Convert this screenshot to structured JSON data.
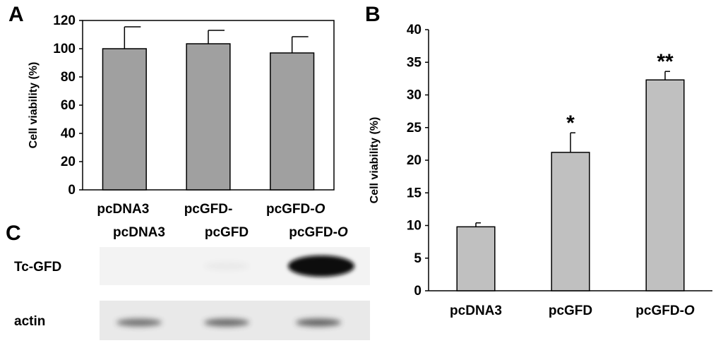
{
  "panels": {
    "A": "A",
    "B": "B",
    "C": "C"
  },
  "chart_data": [
    {
      "panel": "A",
      "type": "bar",
      "categories": [
        "pcDNA3",
        "pcGFD",
        "pcGFD-O"
      ],
      "category_labels": [
        {
          "text": "pcDNA3",
          "italic_suffix": ""
        },
        {
          "text": "pcGFD-",
          "italic_suffix": ""
        },
        {
          "text": "pcGFD-",
          "italic_suffix": "O"
        }
      ],
      "values": [
        100,
        103.5,
        97
      ],
      "errors": [
        15.5,
        9.5,
        11.5
      ],
      "significance": [
        "",
        "",
        ""
      ],
      "ylabel": "Cell viability (%)",
      "ylim": [
        0,
        120
      ],
      "yticks": [
        0,
        20,
        40,
        60,
        80,
        100,
        120
      ],
      "bar_color": "#a0a0a0",
      "frame": "box",
      "grid": false
    },
    {
      "panel": "B",
      "type": "bar",
      "categories": [
        "pcDNA3",
        "pcGFD",
        "pcGFD-O"
      ],
      "category_labels": [
        {
          "text": "pcDNA3",
          "italic_suffix": ""
        },
        {
          "text": "pcGFD",
          "italic_suffix": ""
        },
        {
          "text": "pcGFD-",
          "italic_suffix": "O"
        }
      ],
      "values": [
        9.8,
        21.2,
        32.3
      ],
      "errors": [
        0.6,
        3.0,
        1.3
      ],
      "significance": [
        "",
        "*",
        "**"
      ],
      "ylabel": "Cell viability (%)",
      "ylim": [
        0,
        40
      ],
      "yticks": [
        0,
        5,
        10,
        15,
        20,
        25,
        30,
        35,
        40
      ],
      "bar_color": "#c0c0c0",
      "frame": "axes",
      "grid": false
    }
  ],
  "blot": {
    "lane_labels": [
      {
        "text": "pcDNA3",
        "italic_suffix": ""
      },
      {
        "text": "pcGFD",
        "italic_suffix": ""
      },
      {
        "text": "pcGFD-",
        "italic_suffix": "O"
      }
    ],
    "rows": [
      {
        "label": "Tc-GFD",
        "band_intensity": [
          0.0,
          0.05,
          1.0
        ]
      },
      {
        "label": "actin",
        "band_intensity": [
          0.75,
          0.8,
          0.85
        ]
      }
    ]
  }
}
